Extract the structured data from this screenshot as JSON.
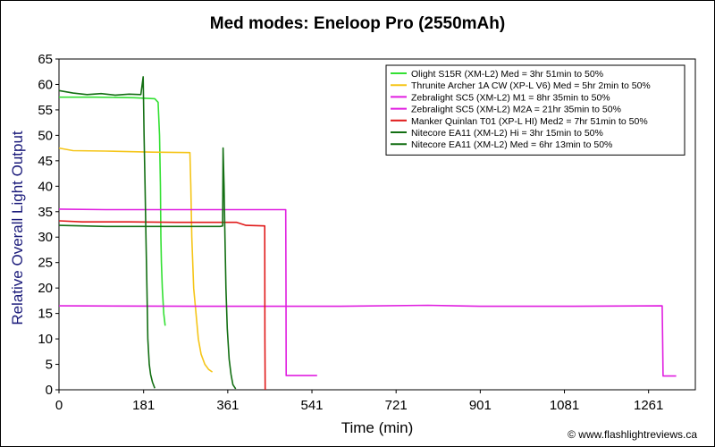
{
  "chart_data": {
    "type": "line",
    "title": "Med modes: Eneloop Pro (2550mAh)",
    "xlabel": "Time (min)",
    "ylabel": "Relative Overall Light Output",
    "xlim": [
      0,
      1361
    ],
    "ylim": [
      0,
      65
    ],
    "x_ticks": [
      0,
      181,
      361,
      541,
      721,
      901,
      1081,
      1261
    ],
    "y_ticks": [
      0,
      5,
      10,
      15,
      20,
      25,
      30,
      35,
      40,
      45,
      50,
      55,
      60,
      65
    ],
    "grid": false,
    "legend_position": "top-right",
    "series": [
      {
        "name": "Olight S15R (XM-L2) Med = 3hr 51min to 50%",
        "color": "#33e033",
        "x": [
          0,
          80,
          160,
          205,
          212,
          215,
          217,
          218,
          219,
          221,
          224,
          227
        ],
        "y": [
          57.5,
          57.5,
          57.4,
          57.2,
          56.5,
          50,
          40,
          30,
          25,
          20,
          15,
          12.6
        ]
      },
      {
        "name": "Thrunite Archer 1A CW (XP-L V6) Med = 5hr 2min to 50%",
        "color": "#f5c518",
        "x": [
          0,
          30,
          100,
          200,
          280,
          282,
          284,
          288,
          293,
          298,
          304,
          312,
          320,
          328
        ],
        "y": [
          47.5,
          47.0,
          46.9,
          46.7,
          46.6,
          40,
          30,
          20,
          15,
          10,
          7,
          5,
          4,
          3.5
        ]
      },
      {
        "name": "Zebralight SC5 (XM-L2) M1 = 8hr 35min to 50%",
        "color": "#e01ee0",
        "x": [
          0,
          100,
          300,
          485,
          485.5,
          486,
          520,
          552
        ],
        "y": [
          35.5,
          35.4,
          35.4,
          35.4,
          20,
          2.8,
          2.8,
          2.8
        ]
      },
      {
        "name": "Zebralight SC5 (XM-L2) M2A = 21hr 35min to 50%",
        "color": "#e01ee0",
        "x": [
          0,
          300,
          600,
          789,
          900,
          1100,
          1290,
          1291,
          1292,
          1305,
          1320
        ],
        "y": [
          16.5,
          16.4,
          16.4,
          16.6,
          16.4,
          16.4,
          16.5,
          10,
          2.7,
          2.7,
          2.7
        ]
      },
      {
        "name": "Manker Quinlan T01 (XP-L HI) Med2 = 7hr 51min to 50%",
        "color": "#e01a1a",
        "x": [
          0,
          50,
          150,
          250,
          380,
          400,
          440,
          440.5,
          441
        ],
        "y": [
          33.2,
          33.0,
          33.0,
          32.9,
          32.9,
          32.3,
          32.2,
          10,
          0
        ]
      },
      {
        "name": "Nitecore EA11 (XM-L2) Hi = 3hr 15min to 50%",
        "color": "#136f13",
        "x": [
          0,
          30,
          60,
          90,
          120,
          150,
          175,
          180,
          182,
          184,
          186,
          188,
          190,
          193,
          196,
          200,
          205
        ],
        "y": [
          58.8,
          58.3,
          58.0,
          58.2,
          57.9,
          58.1,
          58.0,
          61.5,
          50,
          40,
          30,
          20,
          10,
          5,
          3,
          1.5,
          0.3
        ]
      },
      {
        "name": "Nitecore EA11 (XM-L2) Med = 6hr 13min to 50%",
        "color": "#136f13",
        "x": [
          0,
          50,
          100,
          200,
          300,
          345,
          350,
          351,
          353,
          355,
          357,
          360,
          364,
          368,
          372,
          378
        ],
        "y": [
          32.3,
          32.2,
          32.1,
          32.1,
          32.1,
          32.1,
          32.2,
          47.5,
          40,
          30,
          20,
          12,
          6,
          3,
          1,
          0.2
        ]
      }
    ]
  },
  "footer": "© www.flashlightreviews.ca"
}
